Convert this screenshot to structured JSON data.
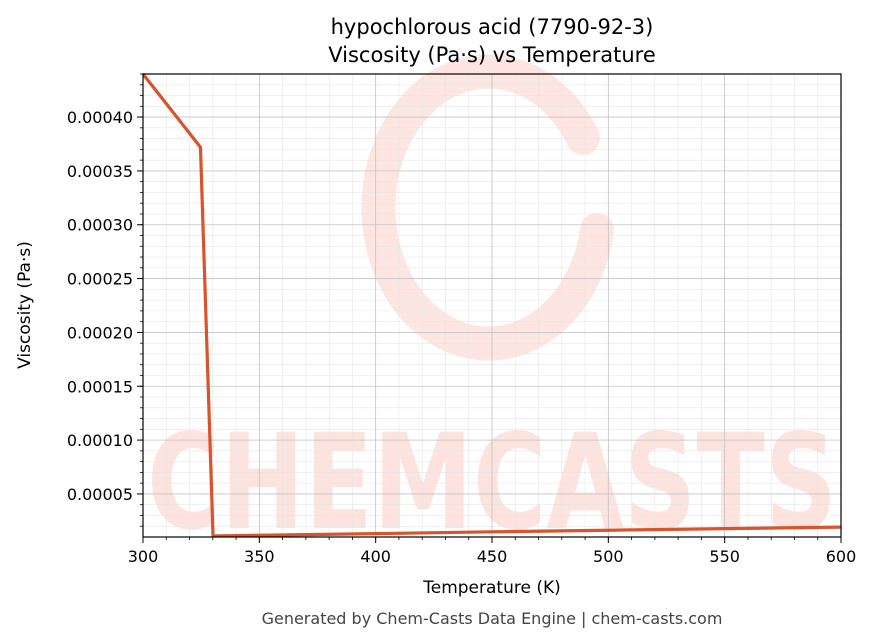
{
  "chart_data": {
    "type": "line",
    "title": "hypochlorous acid (7790-92-3)",
    "subtitle": "Viscosity (Pa·s) vs Temperature",
    "xlabel": "Temperature (K)",
    "ylabel": "Viscosity (Pa·s)",
    "xlim": [
      300,
      600
    ],
    "ylim": [
      1e-05,
      0.00044
    ],
    "x_ticks": [
      300,
      350,
      400,
      450,
      500,
      550,
      600
    ],
    "x_tick_labels": [
      "300",
      "350",
      "400",
      "450",
      "500",
      "550",
      "600"
    ],
    "y_ticks": [
      5e-05,
      0.0001,
      0.00015,
      0.0002,
      0.00025,
      0.0003,
      0.00035,
      0.0004
    ],
    "y_tick_labels": [
      "0.00005",
      "0.00010",
      "0.00015",
      "0.00020",
      "0.00025",
      "0.00030",
      "0.00035",
      "0.00040"
    ],
    "grid": true,
    "series": [
      {
        "color": "#d9532b",
        "x": [
          300,
          324.7,
          330.1,
          400,
          450,
          500,
          550,
          600
        ],
        "y": [
          0.00044,
          0.000372,
          1.1e-05,
          1.31e-05,
          1.48e-05,
          1.63e-05,
          1.78e-05,
          1.92e-05
        ]
      }
    ]
  },
  "watermark": {
    "text": "CHEMCASTS",
    "color": "#fde3de"
  },
  "footer": "Generated by Chem-Casts Data Engine | chem-casts.com"
}
